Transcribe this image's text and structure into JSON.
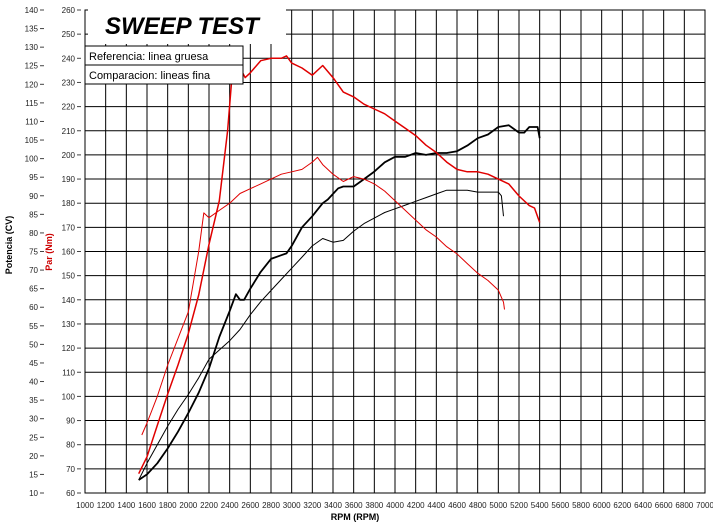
{
  "chart_data": {
    "type": "line",
    "title": "SWEEP TEST",
    "xlabel": "RPM (RPM)",
    "ylabel_left": "Potencia (CV)",
    "ylabel_right": "Par (Nm)",
    "xlim": [
      1000,
      7000
    ],
    "ylim_power": [
      10,
      140
    ],
    "ylim_torque": [
      60,
      260
    ],
    "grid": true,
    "legend": [
      "Referencia: linea gruesa",
      "Comparacion: lineas fina"
    ],
    "x_ticks": [
      "1000",
      "1200",
      "1400",
      "1600",
      "1800",
      "2000",
      "2200",
      "2400",
      "2600",
      "2800",
      "3000",
      "3200",
      "3400",
      "3600",
      "3800",
      "4000",
      "4200",
      "4400",
      "4600",
      "4800",
      "5000",
      "5200",
      "5400",
      "5600",
      "5800",
      "6000",
      "6200",
      "6400",
      "6600",
      "6800",
      "7000"
    ],
    "power_ticks": [
      "140",
      "135",
      "130",
      "125",
      "120",
      "115",
      "110",
      "105",
      "100",
      "95",
      "90",
      "85",
      "80",
      "75",
      "70",
      "65",
      "60",
      "55",
      "50",
      "45",
      "40",
      "35",
      "30",
      "25",
      "20",
      "15",
      "10"
    ],
    "torque_ticks": [
      "260",
      "250",
      "240",
      "230",
      "220",
      "210",
      "200",
      "190",
      "180",
      "170",
      "160",
      "150",
      "140",
      "130",
      "120",
      "110",
      "100",
      "90",
      "80",
      "70",
      "60"
    ],
    "series": [
      {
        "axis": "power",
        "color": "#000000",
        "width": 1.8,
        "points": [
          [
            1520,
            13.5
          ],
          [
            1600,
            15
          ],
          [
            1700,
            18
          ],
          [
            1800,
            22
          ],
          [
            1900,
            26.5
          ],
          [
            2000,
            31.5
          ],
          [
            2100,
            37
          ],
          [
            2200,
            43.5
          ],
          [
            2300,
            52
          ],
          [
            2400,
            59
          ],
          [
            2460,
            63.5
          ],
          [
            2500,
            62
          ],
          [
            2540,
            62
          ],
          [
            2600,
            65
          ],
          [
            2700,
            69.5
          ],
          [
            2800,
            73
          ],
          [
            2900,
            74
          ],
          [
            2950,
            74.5
          ],
          [
            3000,
            76.5
          ],
          [
            3100,
            81.5
          ],
          [
            3200,
            84.5
          ],
          [
            3300,
            88
          ],
          [
            3350,
            89
          ],
          [
            3400,
            90.5
          ],
          [
            3450,
            92
          ],
          [
            3500,
            92.5
          ],
          [
            3600,
            92.5
          ],
          [
            3700,
            94.5
          ],
          [
            3800,
            96.5
          ],
          [
            3900,
            99
          ],
          [
            4000,
            100.5
          ],
          [
            4100,
            100.5
          ],
          [
            4200,
            101.5
          ],
          [
            4300,
            101
          ],
          [
            4400,
            101.5
          ],
          [
            4500,
            101.5
          ],
          [
            4600,
            102
          ],
          [
            4700,
            103.5
          ],
          [
            4800,
            105.5
          ],
          [
            4900,
            106.5
          ],
          [
            5000,
            108.5
          ],
          [
            5100,
            109
          ],
          [
            5200,
            107
          ],
          [
            5250,
            107
          ],
          [
            5300,
            108.5
          ],
          [
            5380,
            108.5
          ],
          [
            5400,
            105.5
          ]
        ]
      },
      {
        "axis": "power",
        "color": "#000000",
        "width": 1.0,
        "points": [
          [
            1520,
            13.5
          ],
          [
            1600,
            18
          ],
          [
            1700,
            23
          ],
          [
            1800,
            28
          ],
          [
            1900,
            32.5
          ],
          [
            2000,
            36.5
          ],
          [
            2100,
            41
          ],
          [
            2200,
            46
          ],
          [
            2300,
            48.5
          ],
          [
            2400,
            51
          ],
          [
            2500,
            54
          ],
          [
            2600,
            58
          ],
          [
            2700,
            61.5
          ],
          [
            2800,
            64.5
          ],
          [
            2900,
            67.5
          ],
          [
            3000,
            70.5
          ],
          [
            3100,
            73.5
          ],
          [
            3200,
            76.5
          ],
          [
            3300,
            78.5
          ],
          [
            3400,
            77.5
          ],
          [
            3500,
            78
          ],
          [
            3600,
            80.5
          ],
          [
            3700,
            82.5
          ],
          [
            3800,
            84
          ],
          [
            3900,
            85.5
          ],
          [
            4000,
            86.5
          ],
          [
            4100,
            87.5
          ],
          [
            4200,
            88.5
          ],
          [
            4300,
            89.5
          ],
          [
            4400,
            90.5
          ],
          [
            4500,
            91.5
          ],
          [
            4600,
            91.5
          ],
          [
            4700,
            91.5
          ],
          [
            4800,
            91
          ],
          [
            4900,
            91
          ],
          [
            5000,
            91
          ],
          [
            5030,
            90
          ],
          [
            5050,
            84.5
          ]
        ]
      },
      {
        "axis": "torque",
        "color": "#e00000",
        "width": 1.5,
        "points": [
          [
            1520,
            68
          ],
          [
            1600,
            75
          ],
          [
            1700,
            88
          ],
          [
            1800,
            101
          ],
          [
            1900,
            113
          ],
          [
            2000,
            126
          ],
          [
            2100,
            142
          ],
          [
            2200,
            163
          ],
          [
            2300,
            181
          ],
          [
            2380,
            210
          ],
          [
            2420,
            231
          ],
          [
            2440,
            240
          ],
          [
            2460,
            240
          ],
          [
            2500,
            236
          ],
          [
            2550,
            232
          ],
          [
            2600,
            234
          ],
          [
            2700,
            239
          ],
          [
            2800,
            240
          ],
          [
            2900,
            240
          ],
          [
            2950,
            241
          ],
          [
            3000,
            238
          ],
          [
            3100,
            236
          ],
          [
            3200,
            233
          ],
          [
            3300,
            237
          ],
          [
            3400,
            232
          ],
          [
            3500,
            226
          ],
          [
            3600,
            224
          ],
          [
            3700,
            221
          ],
          [
            3800,
            219
          ],
          [
            3900,
            217
          ],
          [
            4000,
            214
          ],
          [
            4100,
            211
          ],
          [
            4200,
            208
          ],
          [
            4300,
            204
          ],
          [
            4400,
            201
          ],
          [
            4500,
            197
          ],
          [
            4600,
            194
          ],
          [
            4700,
            193
          ],
          [
            4800,
            193
          ],
          [
            4900,
            192
          ],
          [
            5000,
            190
          ],
          [
            5100,
            188
          ],
          [
            5200,
            183
          ],
          [
            5300,
            179
          ],
          [
            5350,
            178
          ],
          [
            5400,
            172
          ]
        ]
      },
      {
        "axis": "torque",
        "color": "#e00000",
        "width": 1.0,
        "points": [
          [
            1550,
            84
          ],
          [
            1600,
            89
          ],
          [
            1700,
            100
          ],
          [
            1800,
            113
          ],
          [
            1900,
            124
          ],
          [
            2000,
            135
          ],
          [
            2100,
            160
          ],
          [
            2150,
            176
          ],
          [
            2200,
            174
          ],
          [
            2300,
            177
          ],
          [
            2400,
            180
          ],
          [
            2500,
            184
          ],
          [
            2600,
            186
          ],
          [
            2700,
            188
          ],
          [
            2800,
            190
          ],
          [
            2900,
            192
          ],
          [
            3000,
            193
          ],
          [
            3100,
            194
          ],
          [
            3200,
            197
          ],
          [
            3250,
            199
          ],
          [
            3300,
            196
          ],
          [
            3400,
            192
          ],
          [
            3500,
            189
          ],
          [
            3600,
            191
          ],
          [
            3700,
            190
          ],
          [
            3800,
            188
          ],
          [
            3900,
            185
          ],
          [
            4000,
            181
          ],
          [
            4100,
            177
          ],
          [
            4200,
            173
          ],
          [
            4300,
            169
          ],
          [
            4400,
            166
          ],
          [
            4500,
            162
          ],
          [
            4600,
            159
          ],
          [
            4700,
            155
          ],
          [
            4800,
            151
          ],
          [
            4900,
            148
          ],
          [
            5000,
            144
          ],
          [
            5050,
            139
          ],
          [
            5060,
            136
          ]
        ]
      }
    ]
  }
}
